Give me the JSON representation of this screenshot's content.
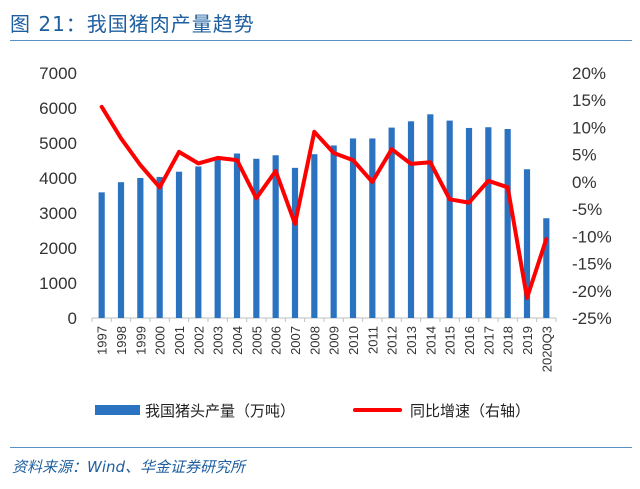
{
  "figure": {
    "title": "图 21：我国猪肉产量趋势",
    "source": "资料来源：Wind、华金证券研究所"
  },
  "colors": {
    "bar": "#2b73c0",
    "line": "#ff0000",
    "title": "#1f5f9f",
    "rule": "#5b8fc7",
    "grid": "#d9d9d9"
  },
  "chart_data": {
    "type": "bar",
    "categories": [
      "1997",
      "1998",
      "1999",
      "2000",
      "2001",
      "2002",
      "2003",
      "2004",
      "2005",
      "2006",
      "2007",
      "2008",
      "2009",
      "2010",
      "2011",
      "2012",
      "2013",
      "2014",
      "2015",
      "2016",
      "2017",
      "2018",
      "2019",
      "2020Q3"
    ],
    "series": [
      {
        "name": "我国猪头产量（万吨）",
        "type": "bar",
        "axis": "left",
        "values": [
          3590,
          3880,
          4000,
          4030,
          4180,
          4330,
          4520,
          4700,
          4550,
          4650,
          4290,
          4680,
          4930,
          5130,
          5130,
          5440,
          5620,
          5820,
          5640,
          5430,
          5450,
          5400,
          4250,
          2850
        ]
      },
      {
        "name": "同比增速（右轴）",
        "type": "line",
        "axis": "right",
        "values": [
          13.8,
          8.0,
          3.1,
          -1.0,
          5.5,
          3.4,
          4.4,
          4.0,
          -3.0,
          2.0,
          -7.7,
          9.2,
          5.3,
          4.0,
          0.0,
          6.0,
          3.3,
          3.6,
          -3.2,
          -3.8,
          0.2,
          -1.0,
          -21.3,
          -10.5
        ]
      }
    ],
    "yticks_left": [
      "7000",
      "6000",
      "5000",
      "4000",
      "3000",
      "2000",
      "1000",
      "0"
    ],
    "yticks_right": [
      "20%",
      "15%",
      "10%",
      "5%",
      "0%",
      "-5%",
      "-10%",
      "-15%",
      "-20%",
      "-25%"
    ],
    "ylim_left": [
      0,
      7000
    ],
    "ylim_right": [
      -25,
      20
    ],
    "grid": false,
    "legend_position": "bottom"
  }
}
